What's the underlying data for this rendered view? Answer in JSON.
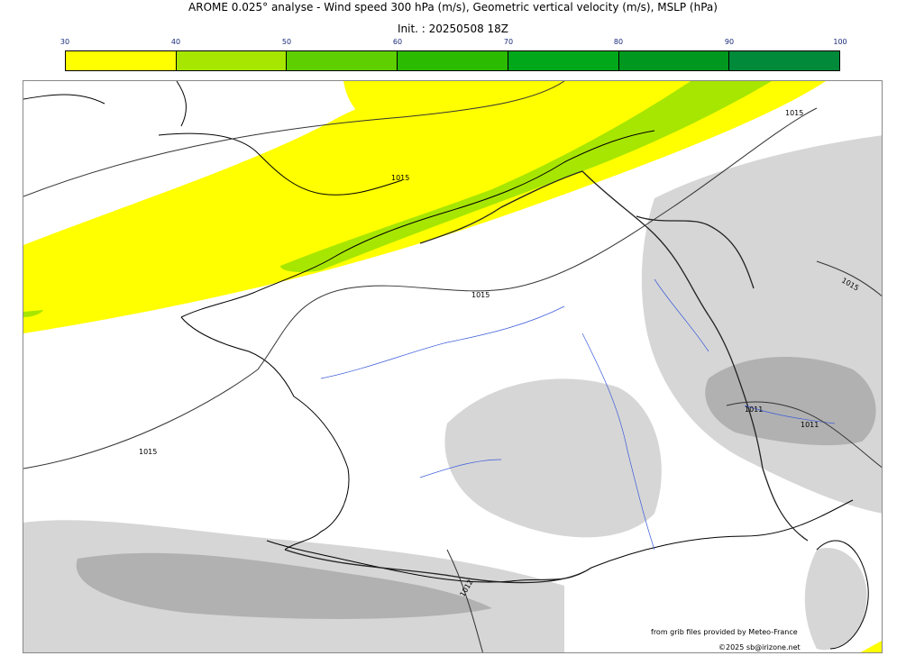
{
  "header": {
    "title": "AROME 0.025° analyse - Wind speed 300 hPa (m/s), Geometric vertical velocity (m/s), MSLP (hPa)",
    "init": "Init. : 20250508 18Z"
  },
  "colorbar": {
    "ticks": [
      "30",
      "40",
      "50",
      "60",
      "70",
      "80",
      "90",
      "100"
    ],
    "colors": [
      "#ffff00",
      "#a7e600",
      "#5ecf00",
      "#2bbb00",
      "#00a81a",
      "#00981e",
      "#008a3a",
      "#007a50"
    ]
  },
  "isobar_labels": [
    "1015",
    "1015",
    "1015",
    "1015",
    "1011",
    "1011",
    "1012",
    "1015"
  ],
  "credits": {
    "source": "from grib files provided by Meteo-France",
    "copyright": "©2025 sb@irizone.net"
  }
}
